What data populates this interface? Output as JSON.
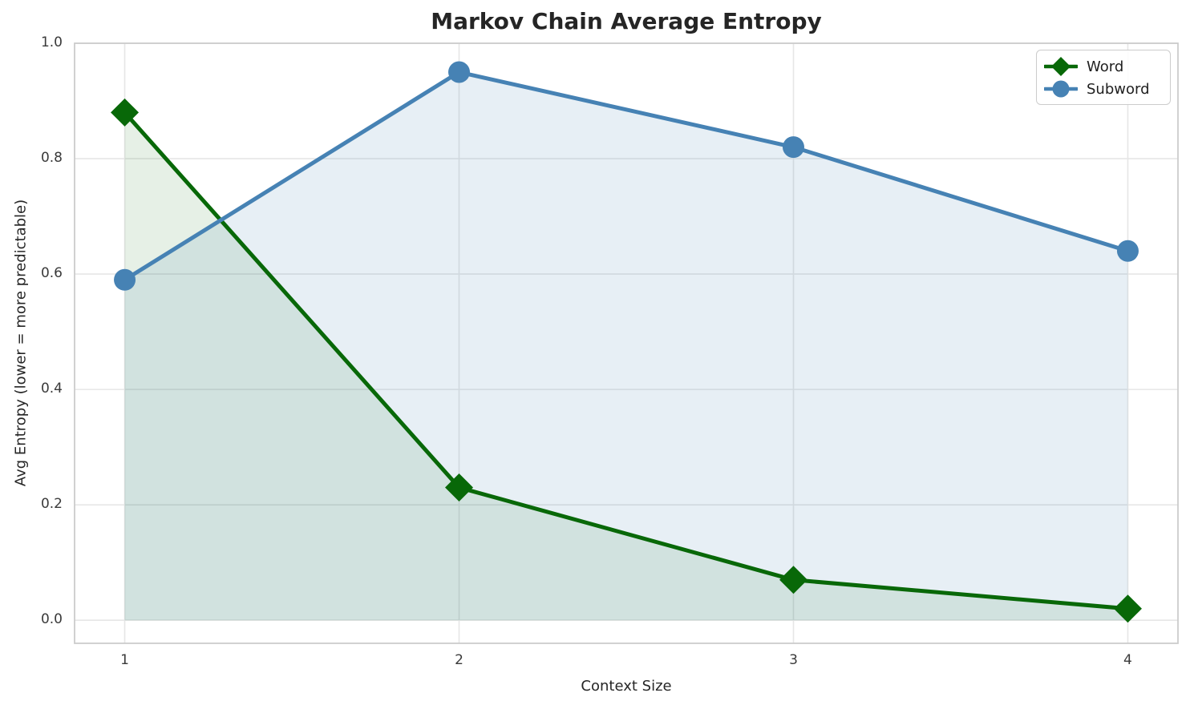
{
  "chart_data": {
    "type": "line",
    "title": "Markov Chain Average Entropy",
    "xlabel": "Context Size",
    "ylabel": "Avg Entropy (lower = more predictable)",
    "x": [
      1,
      2,
      3,
      4
    ],
    "series": [
      {
        "name": "Word",
        "color": "#086808",
        "marker": "diamond",
        "values": [
          0.88,
          0.23,
          0.07,
          0.02
        ],
        "area_fill_to_zero": true,
        "fill_opacity": 0.1
      },
      {
        "name": "Subword",
        "color": "#4682b4",
        "marker": "circle",
        "values": [
          0.59,
          0.95,
          0.82,
          0.64
        ],
        "area_fill_to_zero": true,
        "fill_opacity": 0.13
      }
    ],
    "xticks": {
      "values": [
        1,
        2,
        3,
        4
      ],
      "labels": [
        "1",
        "2",
        "3",
        "4"
      ]
    },
    "yticks": {
      "values": [
        0.0,
        0.2,
        0.4,
        0.6,
        0.8,
        1.0
      ],
      "labels": [
        "0.0",
        "0.2",
        "0.4",
        "0.6",
        "0.8",
        "1.0"
      ]
    },
    "xlim": [
      0.85,
      4.15
    ],
    "ylim": [
      -0.04,
      1.0
    ],
    "grid": true,
    "grid_color": "#e6e6e6",
    "spine_color": "#cccccc",
    "legend": {
      "position": "upper right",
      "items": [
        "Word",
        "Subword"
      ]
    }
  }
}
